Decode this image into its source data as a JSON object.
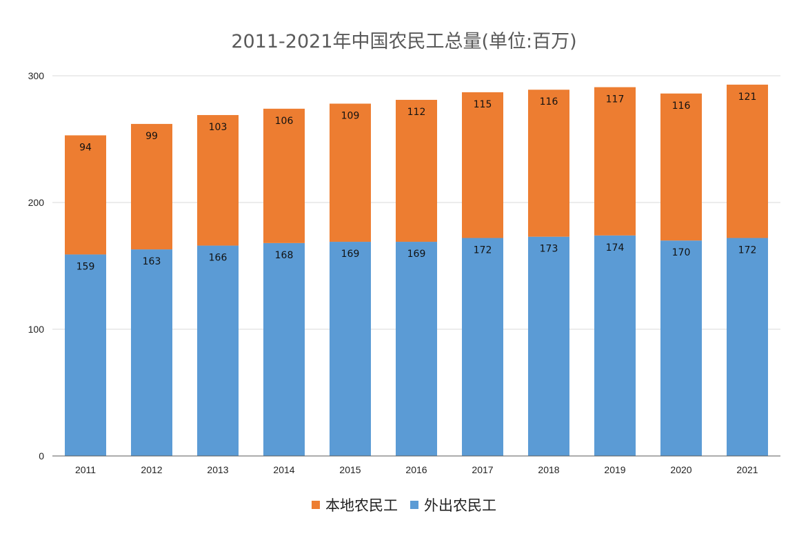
{
  "chart_data": {
    "type": "bar",
    "stacked": true,
    "title": "2011-2021年中国农民工总量(单位:百万)",
    "categories": [
      "2011",
      "2012",
      "2013",
      "2014",
      "2015",
      "2016",
      "2017",
      "2018",
      "2019",
      "2020",
      "2021"
    ],
    "series": [
      {
        "name": "外出农民工",
        "color": "#5b9bd5",
        "values": [
          159,
          163,
          166,
          168,
          169,
          169,
          172,
          173,
          174,
          170,
          172
        ]
      },
      {
        "name": "本地农民工",
        "color": "#ed7d31",
        "values": [
          94,
          99,
          103,
          106,
          109,
          112,
          115,
          116,
          117,
          116,
          121
        ]
      }
    ],
    "ylim": [
      0,
      300
    ],
    "yticks": [
      0,
      100,
      200,
      300
    ],
    "grid": true,
    "legend_position": "bottom",
    "legend_order": [
      "本地农民工",
      "外出农民工"
    ]
  }
}
